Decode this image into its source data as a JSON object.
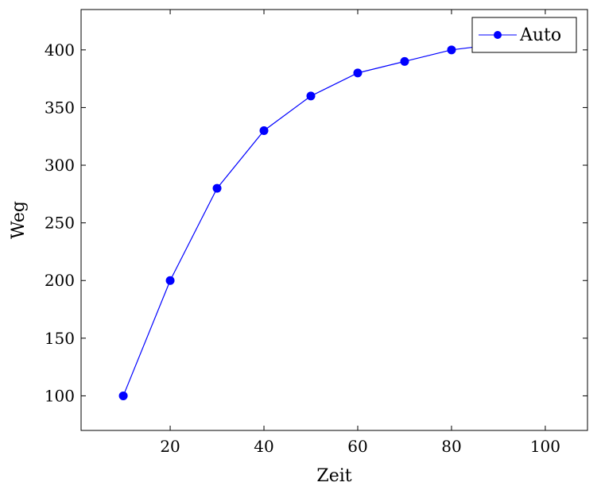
{
  "chart_data": {
    "type": "line",
    "title": "",
    "xlabel": "Zeit",
    "ylabel": "Weg",
    "xlim": [
      1,
      109
    ],
    "ylim": [
      70,
      435
    ],
    "xticks": [
      20,
      40,
      60,
      80,
      100
    ],
    "yticks": [
      100,
      150,
      200,
      250,
      300,
      350,
      400
    ],
    "xtick_labels": [
      "20",
      "40",
      "60",
      "80",
      "100"
    ],
    "ytick_labels": [
      "100",
      "150",
      "200",
      "250",
      "300",
      "350",
      "400"
    ],
    "grid": false,
    "legend_position": "top-right",
    "series": [
      {
        "name": "Auto",
        "color": "#0000ff",
        "marker": "circle",
        "x": [
          10,
          20,
          30,
          40,
          50,
          60,
          70,
          80,
          90
        ],
        "y": [
          100,
          200,
          280,
          330,
          360,
          380,
          390,
          400,
          405
        ]
      }
    ]
  }
}
